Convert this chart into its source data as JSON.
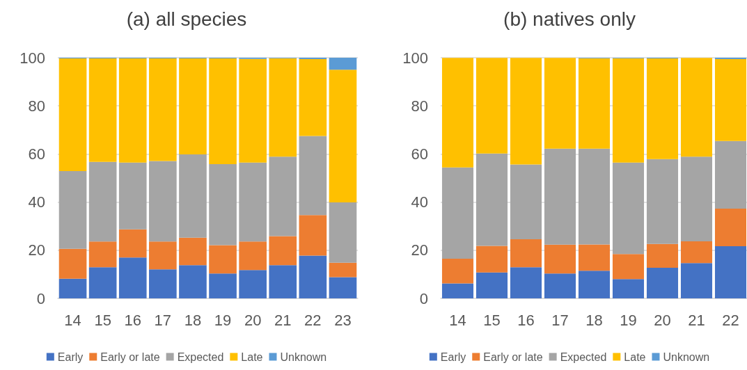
{
  "chart_data": [
    {
      "type": "bar",
      "title": "(a) all species",
      "stacked": true,
      "categories": [
        "14",
        "15",
        "16",
        "17",
        "18",
        "19",
        "20",
        "21",
        "22",
        "23"
      ],
      "ylim": [
        0,
        100
      ],
      "yticks": [
        0,
        20,
        40,
        60,
        80,
        100
      ],
      "grid": "y",
      "legend": "bottom",
      "series": [
        {
          "name": "Early",
          "color": "#4472c4",
          "values": [
            8.2,
            12.9,
            17.0,
            12.1,
            13.8,
            10.3,
            11.8,
            13.8,
            17.8,
            8.8
          ]
        },
        {
          "name": "Early or late",
          "color": "#ed7d31",
          "values": [
            12.4,
            10.7,
            11.7,
            11.5,
            11.4,
            11.8,
            11.8,
            12.1,
            16.8,
            6.0
          ]
        },
        {
          "name": "Expected",
          "color": "#a5a5a5",
          "values": [
            32.3,
            33.1,
            27.7,
            33.5,
            34.6,
            33.7,
            32.8,
            33.0,
            32.9,
            25.1
          ]
        },
        {
          "name": "Late",
          "color": "#ffc000",
          "values": [
            46.8,
            43.0,
            43.3,
            42.6,
            39.9,
            43.9,
            43.1,
            40.9,
            31.9,
            55.1
          ]
        },
        {
          "name": "Unknown",
          "color": "#5b9bd5",
          "values": [
            0.3,
            0.3,
            0.3,
            0.3,
            0.3,
            0.3,
            0.5,
            0.2,
            0.6,
            5.0
          ]
        }
      ]
    },
    {
      "type": "bar",
      "title": "(b) natives only",
      "stacked": true,
      "categories": [
        "14",
        "15",
        "16",
        "17",
        "18",
        "19",
        "20",
        "21",
        "22"
      ],
      "ylim": [
        0,
        100
      ],
      "yticks": [
        0,
        20,
        40,
        60,
        80,
        100
      ],
      "grid": "y",
      "legend": "bottom",
      "series": [
        {
          "name": "Early",
          "color": "#4472c4",
          "values": [
            6.2,
            10.8,
            12.9,
            10.3,
            11.5,
            8.0,
            12.7,
            14.7,
            21.7
          ]
        },
        {
          "name": "Early or late",
          "color": "#ed7d31",
          "values": [
            10.3,
            11.0,
            11.7,
            12.0,
            10.9,
            10.4,
            9.9,
            9.0,
            15.6
          ]
        },
        {
          "name": "Expected",
          "color": "#a5a5a5",
          "values": [
            37.9,
            38.4,
            31.0,
            39.9,
            39.8,
            38.0,
            35.3,
            35.2,
            28.1
          ]
        },
        {
          "name": "Late",
          "color": "#ffc000",
          "values": [
            45.5,
            39.7,
            44.3,
            37.7,
            37.6,
            43.4,
            41.8,
            41.0,
            34.0
          ]
        },
        {
          "name": "Unknown",
          "color": "#5b9bd5",
          "values": [
            null,
            null,
            null,
            null,
            0.2,
            0.2,
            0.3,
            null,
            0.6
          ]
        }
      ]
    }
  ]
}
